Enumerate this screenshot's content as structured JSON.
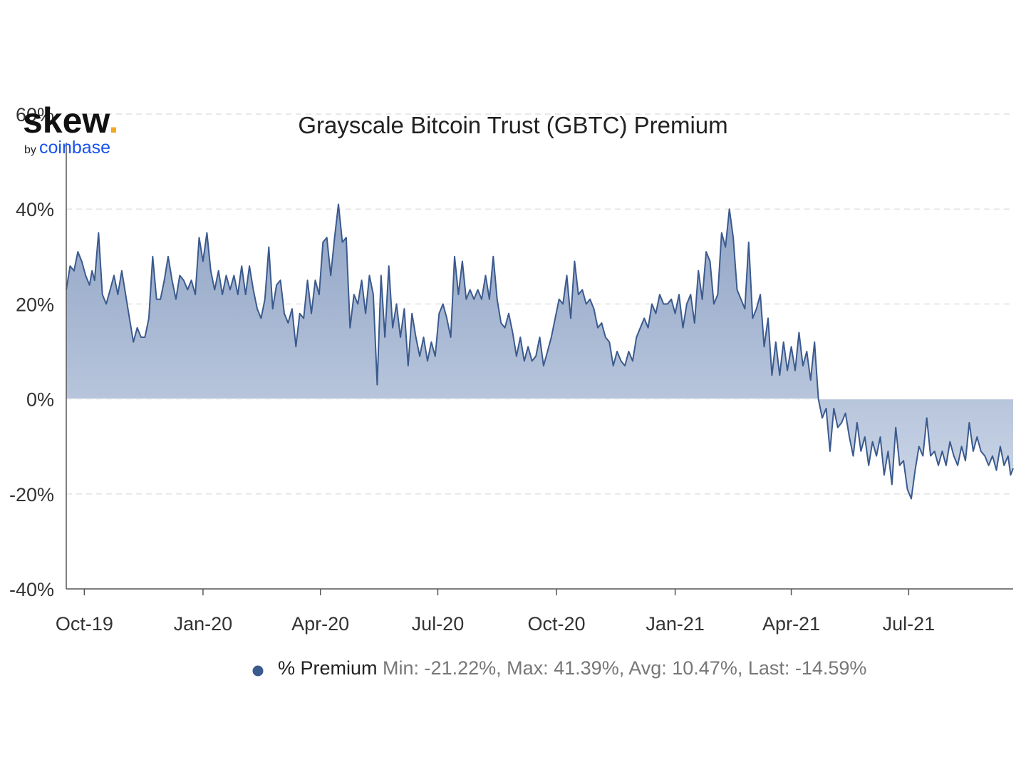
{
  "colors": {
    "series_line": "#3b5a8e",
    "area_top": "#8a9fc2",
    "area_bottom": "#c9d4e6",
    "grid": "#e2e2e2",
    "axis": "#555555",
    "legend_stats": "#777777",
    "logo_accent": "#f5a623",
    "coinbase_blue": "#1652f0"
  },
  "logo": {
    "name": "skew",
    "dot": ".",
    "by": "by",
    "parent": "coinbase"
  },
  "chart_data": {
    "type": "area",
    "title": "Grayscale Bitcoin Trust (GBTC) Premium",
    "ylim": [
      -40,
      60
    ],
    "ytick_values": [
      60,
      40,
      20,
      0,
      -20,
      -40
    ],
    "ytick_labels": [
      "60%",
      "40%",
      "20%",
      "0%",
      "-20%",
      "-40%"
    ],
    "xlim": [
      "2019-09-17",
      "2021-09-20"
    ],
    "xticks": [
      {
        "date": "2019-10-01",
        "label": "Oct-19"
      },
      {
        "date": "2020-01-01",
        "label": "Jan-20"
      },
      {
        "date": "2020-04-01",
        "label": "Apr-20"
      },
      {
        "date": "2020-07-01",
        "label": "Jul-20"
      },
      {
        "date": "2020-10-01",
        "label": "Oct-20"
      },
      {
        "date": "2021-01-01",
        "label": "Jan-21"
      },
      {
        "date": "2021-04-01",
        "label": "Apr-21"
      },
      {
        "date": "2021-07-01",
        "label": "Jul-21"
      }
    ],
    "grid": "horizontal dashed",
    "legend_placement": "bottom-center",
    "series": [
      {
        "name": "% Premium",
        "stats": "Min: -21.22%, Max: 41.39%, Avg: 10.47%, Last: -14.59%",
        "points": [
          [
            "2019-09-17",
            23
          ],
          [
            "2019-09-20",
            28
          ],
          [
            "2019-09-23",
            27
          ],
          [
            "2019-09-26",
            31
          ],
          [
            "2019-09-29",
            29
          ],
          [
            "2019-10-02",
            26
          ],
          [
            "2019-10-05",
            24
          ],
          [
            "2019-10-07",
            27
          ],
          [
            "2019-10-09",
            25
          ],
          [
            "2019-10-12",
            35
          ],
          [
            "2019-10-15",
            22
          ],
          [
            "2019-10-18",
            20
          ],
          [
            "2019-10-21",
            23
          ],
          [
            "2019-10-24",
            26
          ],
          [
            "2019-10-27",
            22
          ],
          [
            "2019-10-30",
            27
          ],
          [
            "2019-11-02",
            22
          ],
          [
            "2019-11-05",
            17
          ],
          [
            "2019-11-08",
            12
          ],
          [
            "2019-11-11",
            15
          ],
          [
            "2019-11-14",
            13
          ],
          [
            "2019-11-17",
            13
          ],
          [
            "2019-11-20",
            17
          ],
          [
            "2019-11-23",
            30
          ],
          [
            "2019-11-26",
            21
          ],
          [
            "2019-11-29",
            21
          ],
          [
            "2019-12-02",
            25
          ],
          [
            "2019-12-05",
            30
          ],
          [
            "2019-12-08",
            25
          ],
          [
            "2019-12-11",
            21
          ],
          [
            "2019-12-14",
            26
          ],
          [
            "2019-12-17",
            25
          ],
          [
            "2019-12-20",
            23
          ],
          [
            "2019-12-23",
            25
          ],
          [
            "2019-12-26",
            22
          ],
          [
            "2019-12-29",
            34
          ],
          [
            "2020-01-01",
            29
          ],
          [
            "2020-01-04",
            35
          ],
          [
            "2020-01-07",
            27
          ],
          [
            "2020-01-10",
            23
          ],
          [
            "2020-01-13",
            27
          ],
          [
            "2020-01-16",
            22
          ],
          [
            "2020-01-19",
            26
          ],
          [
            "2020-01-22",
            23
          ],
          [
            "2020-01-25",
            26
          ],
          [
            "2020-01-28",
            22
          ],
          [
            "2020-01-31",
            28
          ],
          [
            "2020-02-03",
            22
          ],
          [
            "2020-02-06",
            28
          ],
          [
            "2020-02-09",
            23
          ],
          [
            "2020-02-12",
            19
          ],
          [
            "2020-02-15",
            17
          ],
          [
            "2020-02-18",
            21
          ],
          [
            "2020-02-21",
            32
          ],
          [
            "2020-02-24",
            19
          ],
          [
            "2020-02-27",
            24
          ],
          [
            "2020-03-01",
            25
          ],
          [
            "2020-03-04",
            18
          ],
          [
            "2020-03-07",
            16
          ],
          [
            "2020-03-10",
            19
          ],
          [
            "2020-03-13",
            11
          ],
          [
            "2020-03-16",
            18
          ],
          [
            "2020-03-19",
            17
          ],
          [
            "2020-03-22",
            25
          ],
          [
            "2020-03-25",
            18
          ],
          [
            "2020-03-28",
            25
          ],
          [
            "2020-03-31",
            22
          ],
          [
            "2020-04-03",
            33
          ],
          [
            "2020-04-06",
            34
          ],
          [
            "2020-04-09",
            26
          ],
          [
            "2020-04-12",
            34
          ],
          [
            "2020-04-15",
            41
          ],
          [
            "2020-04-18",
            33
          ],
          [
            "2020-04-21",
            34
          ],
          [
            "2020-04-24",
            15
          ],
          [
            "2020-04-27",
            22
          ],
          [
            "2020-04-30",
            20
          ],
          [
            "2020-05-03",
            25
          ],
          [
            "2020-05-06",
            18
          ],
          [
            "2020-05-09",
            26
          ],
          [
            "2020-05-12",
            22
          ],
          [
            "2020-05-15",
            3
          ],
          [
            "2020-05-18",
            26
          ],
          [
            "2020-05-21",
            13
          ],
          [
            "2020-05-24",
            28
          ],
          [
            "2020-05-27",
            15
          ],
          [
            "2020-05-30",
            20
          ],
          [
            "2020-06-02",
            13
          ],
          [
            "2020-06-05",
            19
          ],
          [
            "2020-06-08",
            7
          ],
          [
            "2020-06-11",
            18
          ],
          [
            "2020-06-14",
            13
          ],
          [
            "2020-06-17",
            9
          ],
          [
            "2020-06-20",
            13
          ],
          [
            "2020-06-23",
            8
          ],
          [
            "2020-06-26",
            12
          ],
          [
            "2020-06-29",
            9
          ],
          [
            "2020-07-02",
            18
          ],
          [
            "2020-07-05",
            20
          ],
          [
            "2020-07-08",
            17
          ],
          [
            "2020-07-11",
            13
          ],
          [
            "2020-07-14",
            30
          ],
          [
            "2020-07-17",
            22
          ],
          [
            "2020-07-20",
            29
          ],
          [
            "2020-07-23",
            21
          ],
          [
            "2020-07-26",
            23
          ],
          [
            "2020-07-29",
            21
          ],
          [
            "2020-08-01",
            23
          ],
          [
            "2020-08-04",
            21
          ],
          [
            "2020-08-07",
            26
          ],
          [
            "2020-08-10",
            21
          ],
          [
            "2020-08-13",
            30
          ],
          [
            "2020-08-16",
            21
          ],
          [
            "2020-08-19",
            16
          ],
          [
            "2020-08-22",
            15
          ],
          [
            "2020-08-25",
            18
          ],
          [
            "2020-08-28",
            14
          ],
          [
            "2020-08-31",
            9
          ],
          [
            "2020-09-03",
            13
          ],
          [
            "2020-09-06",
            8
          ],
          [
            "2020-09-09",
            11
          ],
          [
            "2020-09-12",
            8
          ],
          [
            "2020-09-15",
            9
          ],
          [
            "2020-09-18",
            13
          ],
          [
            "2020-09-21",
            7
          ],
          [
            "2020-09-24",
            10
          ],
          [
            "2020-09-27",
            13
          ],
          [
            "2020-09-30",
            17
          ],
          [
            "2020-10-03",
            21
          ],
          [
            "2020-10-06",
            20
          ],
          [
            "2020-10-09",
            26
          ],
          [
            "2020-10-12",
            17
          ],
          [
            "2020-10-15",
            29
          ],
          [
            "2020-10-18",
            22
          ],
          [
            "2020-10-21",
            23
          ],
          [
            "2020-10-24",
            20
          ],
          [
            "2020-10-27",
            21
          ],
          [
            "2020-10-30",
            19
          ],
          [
            "2020-11-02",
            15
          ],
          [
            "2020-11-05",
            16
          ],
          [
            "2020-11-08",
            13
          ],
          [
            "2020-11-11",
            12
          ],
          [
            "2020-11-14",
            7
          ],
          [
            "2020-11-17",
            10
          ],
          [
            "2020-11-20",
            8
          ],
          [
            "2020-11-23",
            7
          ],
          [
            "2020-11-26",
            10
          ],
          [
            "2020-11-29",
            8
          ],
          [
            "2020-12-02",
            13
          ],
          [
            "2020-12-05",
            15
          ],
          [
            "2020-12-08",
            17
          ],
          [
            "2020-12-11",
            15
          ],
          [
            "2020-12-14",
            20
          ],
          [
            "2020-12-17",
            18
          ],
          [
            "2020-12-20",
            22
          ],
          [
            "2020-12-23",
            20
          ],
          [
            "2020-12-26",
            20
          ],
          [
            "2020-12-29",
            21
          ],
          [
            "2021-01-01",
            18
          ],
          [
            "2021-01-04",
            22
          ],
          [
            "2021-01-07",
            15
          ],
          [
            "2021-01-10",
            20
          ],
          [
            "2021-01-13",
            22
          ],
          [
            "2021-01-16",
            16
          ],
          [
            "2021-01-19",
            27
          ],
          [
            "2021-01-22",
            21
          ],
          [
            "2021-01-25",
            31
          ],
          [
            "2021-01-28",
            29
          ],
          [
            "2021-01-31",
            20
          ],
          [
            "2021-02-03",
            22
          ],
          [
            "2021-02-06",
            35
          ],
          [
            "2021-02-09",
            32
          ],
          [
            "2021-02-12",
            40
          ],
          [
            "2021-02-15",
            34
          ],
          [
            "2021-02-18",
            23
          ],
          [
            "2021-02-21",
            21
          ],
          [
            "2021-02-24",
            19
          ],
          [
            "2021-02-27",
            33
          ],
          [
            "2021-03-02",
            17
          ],
          [
            "2021-03-05",
            19
          ],
          [
            "2021-03-08",
            22
          ],
          [
            "2021-03-11",
            11
          ],
          [
            "2021-03-14",
            17
          ],
          [
            "2021-03-17",
            5
          ],
          [
            "2021-03-20",
            12
          ],
          [
            "2021-03-23",
            5
          ],
          [
            "2021-03-26",
            12
          ],
          [
            "2021-03-29",
            6
          ],
          [
            "2021-04-01",
            11
          ],
          [
            "2021-04-04",
            6
          ],
          [
            "2021-04-07",
            14
          ],
          [
            "2021-04-10",
            7
          ],
          [
            "2021-04-13",
            10
          ],
          [
            "2021-04-16",
            4
          ],
          [
            "2021-04-19",
            12
          ],
          [
            "2021-04-22",
            0
          ],
          [
            "2021-04-25",
            -4
          ],
          [
            "2021-04-28",
            -2
          ],
          [
            "2021-05-01",
            -11
          ],
          [
            "2021-05-04",
            -2
          ],
          [
            "2021-05-07",
            -6
          ],
          [
            "2021-05-10",
            -5
          ],
          [
            "2021-05-13",
            -3
          ],
          [
            "2021-05-16",
            -8
          ],
          [
            "2021-05-19",
            -12
          ],
          [
            "2021-05-22",
            -5
          ],
          [
            "2021-05-25",
            -11
          ],
          [
            "2021-05-28",
            -8
          ],
          [
            "2021-05-31",
            -14
          ],
          [
            "2021-06-03",
            -9
          ],
          [
            "2021-06-06",
            -12
          ],
          [
            "2021-06-09",
            -8
          ],
          [
            "2021-06-12",
            -16
          ],
          [
            "2021-06-15",
            -11
          ],
          [
            "2021-06-18",
            -18
          ],
          [
            "2021-06-21",
            -6
          ],
          [
            "2021-06-24",
            -14
          ],
          [
            "2021-06-27",
            -13
          ],
          [
            "2021-06-30",
            -19
          ],
          [
            "2021-07-03",
            -21
          ],
          [
            "2021-07-06",
            -15
          ],
          [
            "2021-07-09",
            -10
          ],
          [
            "2021-07-12",
            -12
          ],
          [
            "2021-07-15",
            -4
          ],
          [
            "2021-07-18",
            -12
          ],
          [
            "2021-07-21",
            -11
          ],
          [
            "2021-07-24",
            -14
          ],
          [
            "2021-07-27",
            -11
          ],
          [
            "2021-07-30",
            -14
          ],
          [
            "2021-08-02",
            -9
          ],
          [
            "2021-08-05",
            -12
          ],
          [
            "2021-08-08",
            -14
          ],
          [
            "2021-08-11",
            -10
          ],
          [
            "2021-08-14",
            -13
          ],
          [
            "2021-08-17",
            -5
          ],
          [
            "2021-08-20",
            -11
          ],
          [
            "2021-08-23",
            -8
          ],
          [
            "2021-08-26",
            -11
          ],
          [
            "2021-08-29",
            -12
          ],
          [
            "2021-09-01",
            -14
          ],
          [
            "2021-09-04",
            -12
          ],
          [
            "2021-09-07",
            -15
          ],
          [
            "2021-09-10",
            -10
          ],
          [
            "2021-09-13",
            -14
          ],
          [
            "2021-09-16",
            -12
          ],
          [
            "2021-09-18",
            -16
          ],
          [
            "2021-09-20",
            -14.59
          ]
        ]
      }
    ]
  }
}
